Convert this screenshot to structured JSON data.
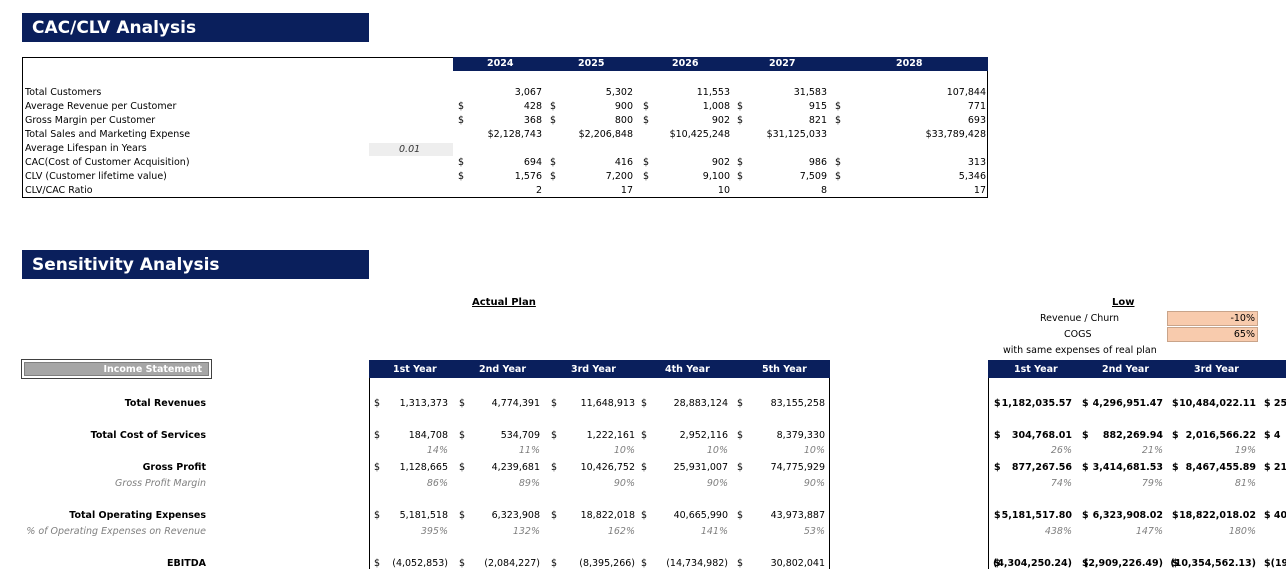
{
  "cac": {
    "title": "CAC/CLV Analysis",
    "years": [
      "2024",
      "2025",
      "2026",
      "2027",
      "2028"
    ],
    "rows": [
      {
        "label": "Total Customers",
        "cur": [
          "",
          "",
          "",
          "",
          ""
        ],
        "vals": [
          "3,067",
          "5,302",
          "11,553",
          "31,583",
          "107,844"
        ]
      },
      {
        "label": "Average Revenue per Customer",
        "cur": [
          "$",
          "$",
          "$",
          "$",
          "$"
        ],
        "vals": [
          "428",
          "900",
          "1,008",
          "915",
          "771"
        ]
      },
      {
        "label": "Gross Margin per Customer",
        "cur": [
          "$",
          "$",
          "$",
          "$",
          "$"
        ],
        "vals": [
          "368",
          "800",
          "902",
          "821",
          "693"
        ]
      },
      {
        "label": "Total Sales and Marketing Expense",
        "cur": [
          "",
          "",
          "",
          "",
          ""
        ],
        "vals": [
          "$2,128,743",
          "$2,206,848",
          "$10,425,248",
          "$31,125,033",
          "$33,789,428"
        ]
      },
      {
        "label": "Average Lifespan in Years",
        "cur": [
          "",
          "",
          "",
          "",
          ""
        ],
        "vals": [
          "",
          "",
          "",
          "",
          ""
        ]
      },
      {
        "label": "CAC(Cost of Customer Acquisition)",
        "cur": [
          "$",
          "$",
          "$",
          "$",
          "$"
        ],
        "vals": [
          "694",
          "416",
          "902",
          "986",
          "313"
        ]
      },
      {
        "label": "CLV (Customer lifetime value)",
        "cur": [
          "$",
          "$",
          "$",
          "$",
          "$"
        ],
        "vals": [
          "1,576",
          "7,200",
          "9,100",
          "7,509",
          "5,346"
        ]
      },
      {
        "label": "CLV/CAC Ratio",
        "cur": [
          "",
          "",
          "",
          "",
          ""
        ],
        "vals": [
          "2",
          "17",
          "10",
          "8",
          "17"
        ]
      }
    ],
    "lifespan_value": "0.01"
  },
  "sens": {
    "title": "Sensitivity Analysis",
    "actual_plan": "Actual Plan",
    "low": "Low",
    "rev_churn_label": "Revenue / Churn",
    "rev_churn_value": "-10%",
    "cogs_label": "COGS",
    "cogs_value": "65%",
    "note": "with same expenses of real plan",
    "income_statement": "Income Statement",
    "year_headers": [
      "1st Year",
      "2nd Year",
      "3rd Year",
      "4th Year",
      "5th Year"
    ],
    "low_headers": [
      "1st Year",
      "2nd Year",
      "3rd Year"
    ],
    "rows": [
      {
        "label": "Total Revenues",
        "style": "b",
        "cur": [
          "$",
          "$",
          "$",
          "$",
          "$"
        ],
        "vals": [
          "1,313,373",
          "4,774,391",
          "11,648,913",
          "28,883,124",
          "83,155,258"
        ],
        "low_cur": [
          "$",
          "$",
          "$",
          "$ 25"
        ],
        "low": [
          "1,182,035.57",
          "4,296,951.47",
          "10,484,022.11",
          ""
        ]
      },
      {
        "label": "Total Cost of Services",
        "style": "b",
        "cur": [
          "$",
          "$",
          "$",
          "$",
          "$"
        ],
        "vals": [
          "184,708",
          "534,709",
          "1,222,161",
          "2,952,116",
          "8,379,330"
        ],
        "low_cur": [
          "$",
          "$",
          "$",
          "$ 4"
        ],
        "low": [
          "304,768.01",
          "882,269.94",
          "2,016,566.22",
          ""
        ]
      },
      {
        "label": "",
        "style": "i",
        "cur": [
          "",
          "",
          "",
          "",
          ""
        ],
        "vals": [
          "14%",
          "11%",
          "10%",
          "10%",
          "10%"
        ],
        "low_cur": [
          "",
          "",
          "",
          ""
        ],
        "low": [
          "26%",
          "21%",
          "19%",
          ""
        ]
      },
      {
        "label": "Gross Profit",
        "style": "b",
        "cur": [
          "$",
          "$",
          "$",
          "$",
          "$"
        ],
        "vals": [
          "1,128,665",
          "4,239,681",
          "10,426,752",
          "25,931,007",
          "74,775,929"
        ],
        "low_cur": [
          "$",
          "$",
          "$",
          "$ 21"
        ],
        "low": [
          "877,267.56",
          "3,414,681.53",
          "8,467,455.89",
          ""
        ]
      },
      {
        "label": "Gross Profit Margin",
        "style": "i",
        "cur": [
          "",
          "",
          "",
          "",
          ""
        ],
        "vals": [
          "86%",
          "89%",
          "90%",
          "90%",
          "90%"
        ],
        "low_cur": [
          "",
          "",
          "",
          ""
        ],
        "low": [
          "74%",
          "79%",
          "81%",
          ""
        ]
      },
      {
        "label": "Total Operating Expenses",
        "style": "b",
        "cur": [
          "$",
          "$",
          "$",
          "$",
          "$"
        ],
        "vals": [
          "5,181,518",
          "6,323,908",
          "18,822,018",
          "40,665,990",
          "43,973,887"
        ],
        "low_cur": [
          "$",
          "$",
          "$",
          "$ 40"
        ],
        "low": [
          "5,181,517.80",
          "6,323,908.02",
          "18,822,018.02",
          ""
        ]
      },
      {
        "label": "% of Operating Expenses on Revenue",
        "style": "i",
        "cur": [
          "",
          "",
          "",
          "",
          ""
        ],
        "vals": [
          "395%",
          "132%",
          "162%",
          "141%",
          "53%"
        ],
        "low_cur": [
          "",
          "",
          "",
          ""
        ],
        "low": [
          "438%",
          "147%",
          "180%",
          ""
        ]
      },
      {
        "label": "EBITDA",
        "style": "b",
        "cur": [
          "$",
          "$",
          "$",
          "$",
          "$"
        ],
        "vals": [
          "(4,052,853)",
          "(2,084,227)",
          "(8,395,266)",
          "(14,734,982)",
          "30,802,041"
        ],
        "low_cur": [
          "$",
          "$",
          "$",
          "$(19"
        ],
        "low": [
          "(4,304,250.24)",
          "(2,909,226.49)",
          "(10,354,562.13)",
          ""
        ]
      }
    ]
  }
}
